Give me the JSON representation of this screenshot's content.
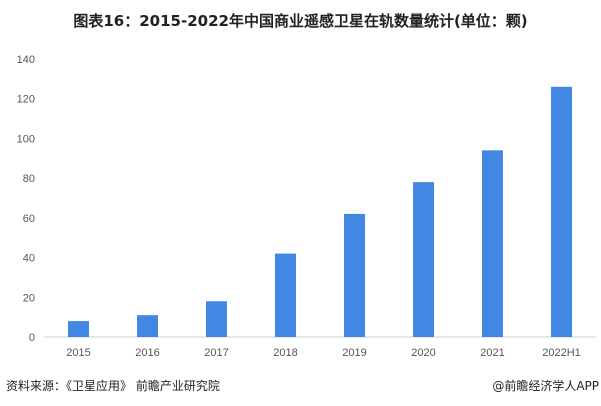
{
  "chart_data": {
    "type": "bar",
    "title": "图表16：2015-2022年中国商业遥感卫星在轨数量统计(单位：颗)",
    "categories": [
      "2015",
      "2016",
      "2017",
      "2018",
      "2019",
      "2020",
      "2021",
      "2022H1"
    ],
    "values": [
      8,
      11,
      18,
      42,
      62,
      78,
      94,
      126
    ],
    "ylim": [
      0,
      140
    ],
    "yticks": [
      0,
      20,
      40,
      60,
      80,
      100,
      120,
      140
    ],
    "grid": false,
    "bar_color": "#4187E3",
    "xlabel": "",
    "ylabel": ""
  },
  "footer": {
    "source": "资料来源：《卫星应用》 前瞻产业研究院",
    "brand": "@前瞻经济学人APP"
  }
}
